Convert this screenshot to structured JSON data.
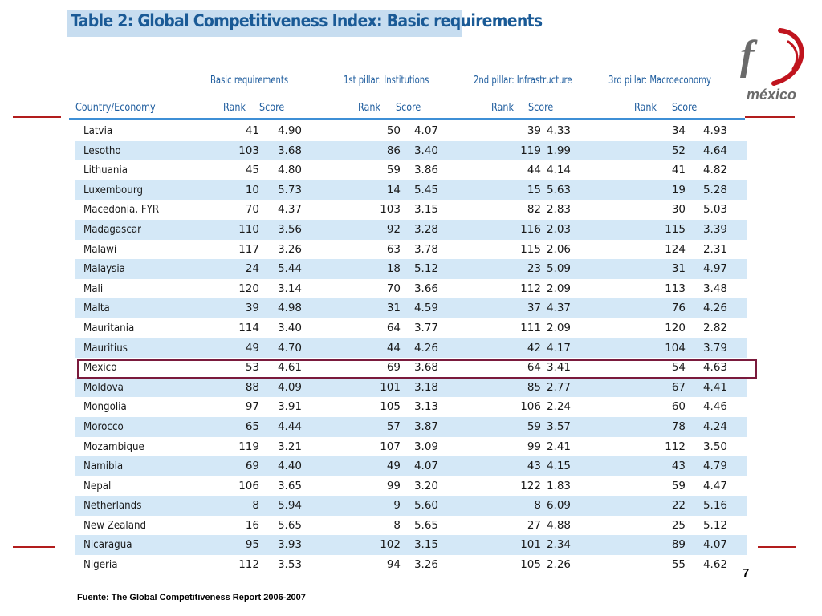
{
  "title": "Table 2: Global Competitiveness Index: Basic requirements",
  "logo_text": "méxico",
  "logo_partial": "f",
  "groups": [
    "Basic requirements",
    "1st pillar: Institutions",
    "2nd pillar: Infrastructure",
    "3rd pillar: Macroeconomy"
  ],
  "country_header": "Country/Economy",
  "rank_label": "Rank",
  "score_label": "Score",
  "highlighted_country": "Mexico",
  "rows": [
    {
      "country": "Latvia",
      "v": [
        "41",
        "4.90",
        "50",
        "4.07",
        "39",
        "4.33",
        "34",
        "4.93"
      ]
    },
    {
      "country": "Lesotho",
      "v": [
        "103",
        "3.68",
        "86",
        "3.40",
        "119",
        "1.99",
        "52",
        "4.64"
      ]
    },
    {
      "country": "Lithuania",
      "v": [
        "45",
        "4.80",
        "59",
        "3.86",
        "44",
        "4.14",
        "41",
        "4.82"
      ]
    },
    {
      "country": "Luxembourg",
      "v": [
        "10",
        "5.73",
        "14",
        "5.45",
        "15",
        "5.63",
        "19",
        "5.28"
      ]
    },
    {
      "country": "Macedonia, FYR",
      "v": [
        "70",
        "4.37",
        "103",
        "3.15",
        "82",
        "2.83",
        "30",
        "5.03"
      ]
    },
    {
      "country": "Madagascar",
      "v": [
        "110",
        "3.56",
        "92",
        "3.28",
        "116",
        "2.03",
        "115",
        "3.39"
      ]
    },
    {
      "country": "Malawi",
      "v": [
        "117",
        "3.26",
        "63",
        "3.78",
        "115",
        "2.06",
        "124",
        "2.31"
      ]
    },
    {
      "country": "Malaysia",
      "v": [
        "24",
        "5.44",
        "18",
        "5.12",
        "23",
        "5.09",
        "31",
        "4.97"
      ]
    },
    {
      "country": "Mali",
      "v": [
        "120",
        "3.14",
        "70",
        "3.66",
        "112",
        "2.09",
        "113",
        "3.48"
      ]
    },
    {
      "country": "Malta",
      "v": [
        "39",
        "4.98",
        "31",
        "4.59",
        "37",
        "4.37",
        "76",
        "4.26"
      ]
    },
    {
      "country": "Mauritania",
      "v": [
        "114",
        "3.40",
        "64",
        "3.77",
        "111",
        "2.09",
        "120",
        "2.82"
      ]
    },
    {
      "country": "Mauritius",
      "v": [
        "49",
        "4.70",
        "44",
        "4.26",
        "42",
        "4.17",
        "104",
        "3.79"
      ]
    },
    {
      "country": "Mexico",
      "v": [
        "53",
        "4.61",
        "69",
        "3.68",
        "64",
        "3.41",
        "54",
        "4.63"
      ]
    },
    {
      "country": "Moldova",
      "v": [
        "88",
        "4.09",
        "101",
        "3.18",
        "85",
        "2.77",
        "67",
        "4.41"
      ]
    },
    {
      "country": "Mongolia",
      "v": [
        "97",
        "3.91",
        "105",
        "3.13",
        "106",
        "2.24",
        "60",
        "4.46"
      ]
    },
    {
      "country": "Morocco",
      "v": [
        "65",
        "4.44",
        "57",
        "3.87",
        "59",
        "3.57",
        "78",
        "4.24"
      ]
    },
    {
      "country": "Mozambique",
      "v": [
        "119",
        "3.21",
        "107",
        "3.09",
        "99",
        "2.41",
        "112",
        "3.50"
      ]
    },
    {
      "country": "Namibia",
      "v": [
        "69",
        "4.40",
        "49",
        "4.07",
        "43",
        "4.15",
        "43",
        "4.79"
      ]
    },
    {
      "country": "Nepal",
      "v": [
        "106",
        "3.65",
        "99",
        "3.20",
        "122",
        "1.83",
        "59",
        "4.47"
      ]
    },
    {
      "country": "Netherlands",
      "v": [
        "8",
        "5.94",
        "9",
        "5.60",
        "8",
        "6.09",
        "22",
        "5.16"
      ]
    },
    {
      "country": "New Zealand",
      "v": [
        "16",
        "5.65",
        "8",
        "5.65",
        "27",
        "4.88",
        "25",
        "5.12"
      ]
    },
    {
      "country": "Nicaragua",
      "v": [
        "95",
        "3.93",
        "102",
        "3.15",
        "101",
        "2.34",
        "89",
        "4.07"
      ]
    },
    {
      "country": "Nigeria",
      "v": [
        "112",
        "3.53",
        "94",
        "3.26",
        "105",
        "2.26",
        "55",
        "4.62"
      ]
    }
  ],
  "page_number": "7",
  "source": "Fuente: The Global Competitiveness Report 2006-2007",
  "colors": {
    "title_bg": "#c7ddf0",
    "header_text": "#1f5d9e",
    "row_alt": "#d4e8f7",
    "highlight_border": "#7a1a3c",
    "accent_red": "#b21d1d"
  }
}
